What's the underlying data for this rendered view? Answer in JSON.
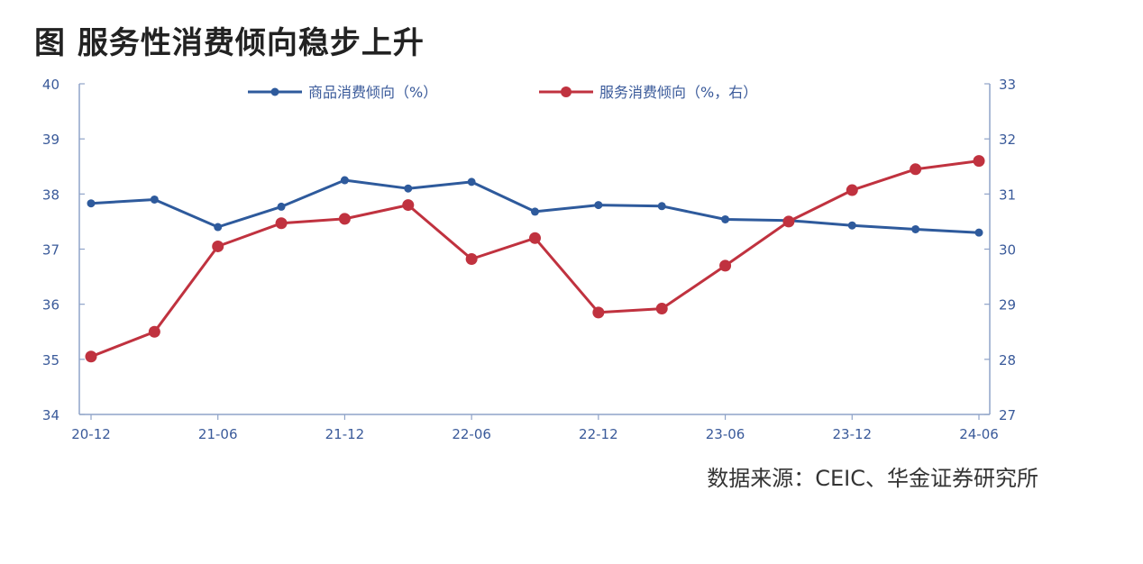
{
  "title": "图  服务性消费倾向稳步上升",
  "source": "数据来源：CEIC、华金证券研究所",
  "colors": {
    "goods": "#2e5a9c",
    "services": "#c0323f",
    "axis": "#8fa3c8",
    "tick_text": "#3a5a9a"
  },
  "chart_data": {
    "type": "line",
    "x_tick_labels": [
      "20-12",
      "21-06",
      "21-12",
      "22-06",
      "22-12",
      "23-06",
      "23-12",
      "24-06"
    ],
    "x": [
      "20-12",
      "21-03",
      "21-06",
      "21-09",
      "21-12",
      "22-03",
      "22-06",
      "22-09",
      "22-12",
      "23-03",
      "23-06",
      "23-09",
      "23-12",
      "24-03",
      "24-06"
    ],
    "y_left": {
      "ylim": [
        34,
        40
      ],
      "ticks": [
        "34",
        "35",
        "36",
        "37",
        "38",
        "39",
        "40"
      ]
    },
    "y_right": {
      "ylim": [
        27,
        33
      ],
      "ticks": [
        "27",
        "28",
        "29",
        "30",
        "31",
        "32",
        "33"
      ]
    },
    "legend_position": "top",
    "series": [
      {
        "name": "商品消费倾向（%）",
        "axis": "left",
        "values": [
          37.83,
          37.9,
          37.4,
          37.77,
          38.25,
          38.1,
          38.22,
          37.68,
          37.8,
          37.78,
          37.54,
          37.52,
          37.43,
          37.36,
          37.3
        ]
      },
      {
        "name": "服务消费倾向（%，右）",
        "axis": "right",
        "values": [
          28.05,
          28.5,
          30.05,
          30.47,
          30.55,
          30.8,
          29.82,
          30.2,
          28.85,
          28.92,
          29.7,
          30.5,
          31.07,
          31.45,
          31.6
        ]
      }
    ]
  }
}
